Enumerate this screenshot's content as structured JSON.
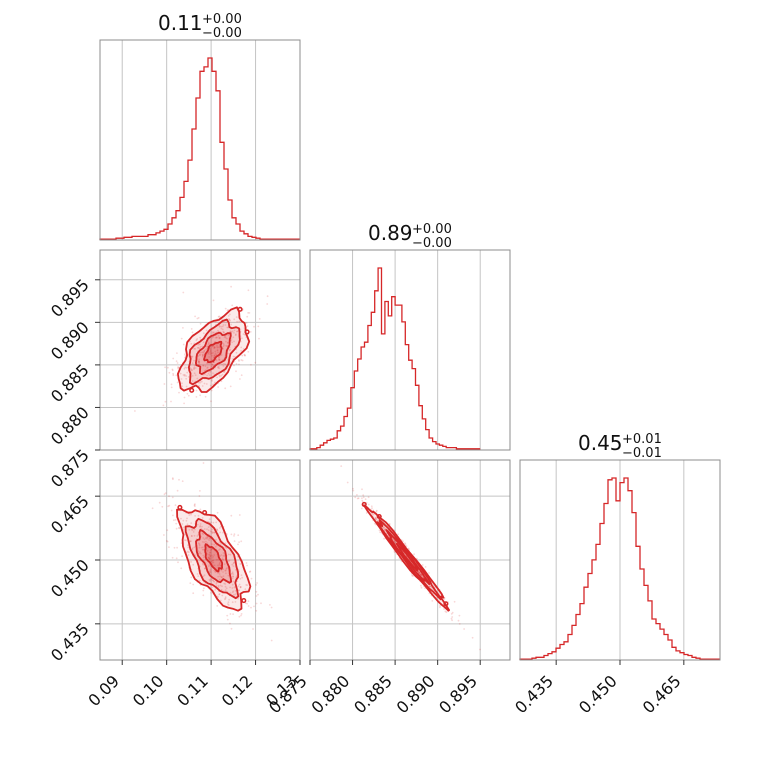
{
  "chart_data": {
    "type": "corner",
    "color": "#d62728",
    "grid": true,
    "parameters": [
      {
        "title": {
          "value": "0.11",
          "plus": "+0.00",
          "minus": "−0.00"
        },
        "axis_range": [
          0.085,
          0.13
        ],
        "ticks": [
          0.09,
          0.1,
          0.11,
          0.12,
          0.13
        ],
        "tick_labels": [
          "0.09",
          "0.10",
          "0.11",
          "0.12",
          "0.13"
        ],
        "hist_start": 0.085,
        "hist_bin": 0.0009,
        "hist_counts": [
          1,
          1,
          1,
          1,
          2,
          2,
          3,
          3,
          4,
          4,
          4,
          4,
          6,
          6,
          8,
          10,
          12,
          18,
          25,
          33,
          48,
          66,
          90,
          125,
          160,
          190,
          195,
          205,
          190,
          168,
          110,
          80,
          45,
          25,
          18,
          10,
          7,
          4,
          3,
          2,
          1,
          1,
          1,
          1,
          1,
          1,
          1,
          1,
          1,
          1
        ]
      },
      {
        "title": {
          "value": "0.89",
          "plus": "+0.00",
          "minus": "−0.00"
        },
        "axis_range": [
          0.875,
          0.8985
        ],
        "ticks": [
          0.875,
          0.88,
          0.885,
          0.89,
          0.895
        ],
        "tick_labels": [
          "0.875",
          "0.880",
          "0.885",
          "0.890",
          "0.895"
        ],
        "hist_start": 0.875,
        "hist_bin": 0.0004,
        "hist_counts": [
          1,
          1,
          2,
          4,
          6,
          8,
          9,
          10,
          16,
          20,
          28,
          35,
          52,
          66,
          76,
          86,
          90,
          104,
          115,
          133,
          152,
          97,
          124,
          112,
          128,
          121,
          121,
          107,
          88,
          75,
          68,
          54,
          37,
          26,
          17,
          10,
          7,
          5,
          4,
          3,
          2,
          2,
          2,
          1,
          1,
          1,
          1,
          1,
          1,
          1
        ]
      },
      {
        "title": {
          "value": "0.45",
          "plus": "+0.01",
          "minus": "−0.01"
        },
        "axis_range": [
          0.4265,
          0.4735
        ],
        "ticks": [
          0.435,
          0.45,
          0.465
        ],
        "tick_labels": [
          "0.435",
          "0.450",
          "0.465"
        ],
        "hist_start": 0.4265,
        "hist_bin": 0.00094,
        "hist_counts": [
          1,
          1,
          1,
          2,
          3,
          3,
          5,
          7,
          9,
          13,
          17,
          20,
          28,
          38,
          50,
          62,
          80,
          95,
          110,
          127,
          150,
          172,
          198,
          200,
          175,
          195,
          200,
          186,
          162,
          125,
          100,
          82,
          65,
          45,
          40,
          34,
          28,
          22,
          14,
          10,
          8,
          6,
          5,
          3,
          2,
          1,
          1,
          1,
          1,
          1
        ]
      }
    ],
    "pairs": [
      {
        "row": 1,
        "col": 0,
        "center": [
          0.1105,
          0.8865
        ],
        "sd": [
          0.0038,
          0.0023
        ],
        "corr": 0.55
      },
      {
        "row": 2,
        "col": 0,
        "center": [
          0.1105,
          0.4505
        ],
        "sd": [
          0.0038,
          0.0058
        ],
        "corr": -0.62
      },
      {
        "row": 2,
        "col": 1,
        "center": [
          0.8865,
          0.4505
        ],
        "sd": [
          0.0023,
          0.0058
        ],
        "corr": -0.985
      }
    ],
    "row1_ticks": [
      0.875,
      0.88,
      0.885,
      0.89,
      0.895
    ],
    "row1_tick_labels": [
      "0.875",
      "0.880",
      "0.885",
      "0.890",
      "0.895"
    ],
    "row2_ticks": [
      0.435,
      0.45,
      0.465
    ],
    "row2_tick_labels": [
      "0.435",
      "0.450",
      "0.465"
    ]
  }
}
